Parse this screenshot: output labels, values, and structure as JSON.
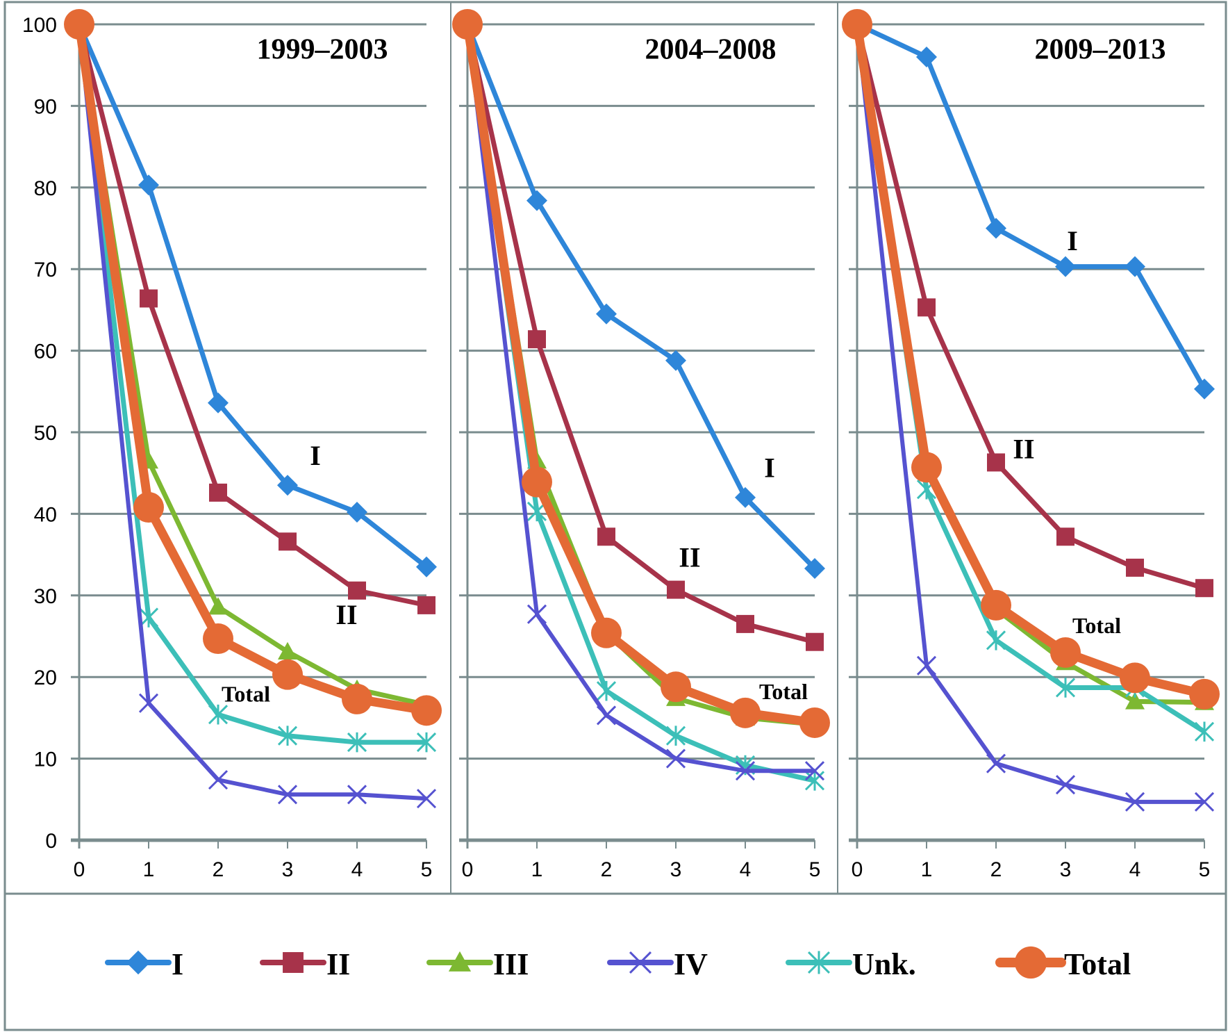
{
  "chart_data": {
    "type": "line",
    "x": [
      0,
      1,
      2,
      3,
      4,
      5
    ],
    "ylim": [
      0,
      100
    ],
    "yticks": [
      0,
      10,
      20,
      30,
      40,
      50,
      60,
      70,
      80,
      90,
      100
    ],
    "xticks": [
      0,
      1,
      2,
      3,
      4,
      5
    ],
    "grid": true,
    "legend_position": "bottom",
    "legend": [
      {
        "name": "I",
        "color": "#2E86D9",
        "marker": "diamond"
      },
      {
        "name": "II",
        "color": "#A7334A",
        "marker": "square"
      },
      {
        "name": "III",
        "color": "#7DB832",
        "marker": "triangle"
      },
      {
        "name": "IV",
        "color": "#5552D0",
        "marker": "x"
      },
      {
        "name": "Unk.",
        "color": "#3CBFB8",
        "marker": "asterisk"
      },
      {
        "name": "Total",
        "color": "#E46A35",
        "marker": "circle"
      }
    ],
    "panels": [
      {
        "title": "1999–2003",
        "annotations": [
          {
            "text": "I",
            "x": 3.4,
            "y": 46
          },
          {
            "text": "II",
            "x": 3.85,
            "y": 26.5
          },
          {
            "text": "Total",
            "x": 2.4,
            "y": 17,
            "small": true
          }
        ],
        "series": [
          {
            "name": "I",
            "values": [
              100,
              80.3,
              53.6,
              43.5,
              40.2,
              33.5
            ]
          },
          {
            "name": "II",
            "values": [
              100,
              66.4,
              42.6,
              36.6,
              30.6,
              28.8
            ]
          },
          {
            "name": "III",
            "values": [
              100,
              46.5,
              28.6,
              23.1,
              18.5,
              16.6
            ]
          },
          {
            "name": "IV",
            "values": [
              100,
              16.8,
              7.4,
              5.6,
              5.6,
              5.1
            ]
          },
          {
            "name": "Unk.",
            "values": [
              100,
              27.3,
              15.4,
              12.8,
              12.0,
              12.0
            ]
          },
          {
            "name": "Total",
            "values": [
              100,
              40.8,
              24.7,
              20.3,
              17.3,
              15.9
            ]
          }
        ]
      },
      {
        "title": "2004–2008",
        "annotations": [
          {
            "text": "I",
            "x": 4.35,
            "y": 44.5
          },
          {
            "text": "II",
            "x": 3.2,
            "y": 33.5
          },
          {
            "text": "Total",
            "x": 4.55,
            "y": 17.3,
            "small": true
          }
        ],
        "series": [
          {
            "name": "I",
            "values": [
              100,
              78.4,
              64.5,
              58.8,
              42.0,
              33.3
            ]
          },
          {
            "name": "II",
            "values": [
              100,
              61.4,
              37.2,
              30.7,
              26.5,
              24.3
            ]
          },
          {
            "name": "III",
            "values": [
              100,
              46.5,
              25.4,
              17.4,
              15.0,
              14.2
            ]
          },
          {
            "name": "IV",
            "values": [
              100,
              27.7,
              15.3,
              10.0,
              8.5,
              8.5
            ]
          },
          {
            "name": "Unk.",
            "values": [
              100,
              40.3,
              18.3,
              12.8,
              9.2,
              7.3
            ]
          },
          {
            "name": "Total",
            "values": [
              100,
              43.9,
              25.4,
              18.8,
              15.6,
              14.4
            ]
          }
        ]
      },
      {
        "title": "2009–2013",
        "annotations": [
          {
            "text": "I",
            "x": 3.1,
            "y": 72.3
          },
          {
            "text": "II",
            "x": 2.4,
            "y": 46.8
          },
          {
            "text": "Total",
            "x": 3.45,
            "y": 25.4,
            "small": true
          }
        ],
        "series": [
          {
            "name": "I",
            "values": [
              100,
              96.0,
              75.0,
              70.3,
              70.3,
              55.3
            ]
          },
          {
            "name": "II",
            "values": [
              100,
              65.3,
              46.3,
              37.2,
              33.4,
              30.9
            ]
          },
          {
            "name": "III",
            "values": [
              100,
              45.9,
              28.3,
              21.8,
              17.0,
              16.9
            ]
          },
          {
            "name": "IV",
            "values": [
              100,
              21.4,
              9.4,
              6.8,
              4.7,
              4.7
            ]
          },
          {
            "name": "Unk.",
            "values": [
              100,
              43.0,
              24.5,
              18.7,
              18.7,
              13.3
            ]
          },
          {
            "name": "Total",
            "values": [
              100,
              45.7,
              28.8,
              23.0,
              19.9,
              17.9
            ]
          }
        ]
      }
    ]
  }
}
